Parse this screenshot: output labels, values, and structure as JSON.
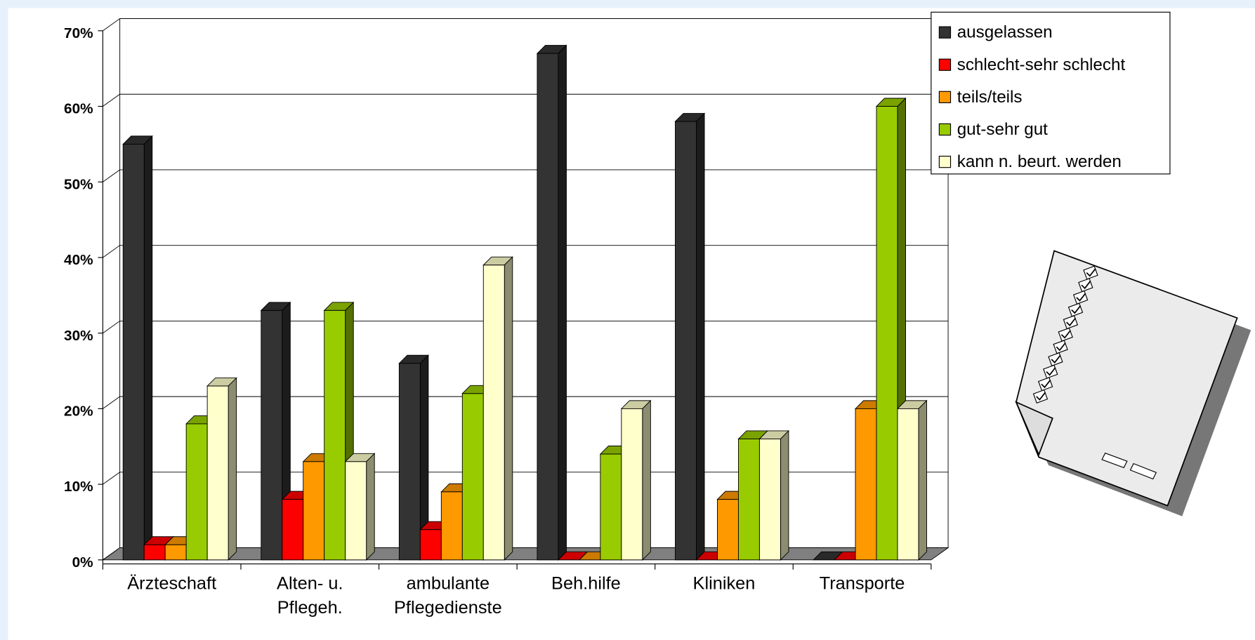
{
  "chart_data": {
    "type": "bar",
    "categories": [
      "Ärzteschaft",
      "Alten- u. Pflegeh.",
      "ambulante Pflegedienste",
      "Beh.hilfe",
      "Kliniken",
      "Transporte"
    ],
    "series": [
      {
        "name": "ausgelassen",
        "color": "#333333",
        "values": [
          55,
          33,
          26,
          67,
          58,
          0
        ]
      },
      {
        "name": "schlecht-sehr schlecht",
        "color": "#ff0000",
        "values": [
          2,
          8,
          4,
          0,
          0,
          0
        ]
      },
      {
        "name": "teils/teils",
        "color": "#ff9900",
        "values": [
          2,
          13,
          9,
          0,
          8,
          20
        ]
      },
      {
        "name": "gut-sehr gut",
        "color": "#99cc00",
        "values": [
          18,
          33,
          22,
          14,
          16,
          60
        ]
      },
      {
        "name": "kann n. beurt. werden",
        "color": "#ffffcc",
        "values": [
          23,
          13,
          39,
          20,
          16,
          20
        ]
      }
    ],
    "ylim": [
      0,
      70
    ],
    "yticks": [
      {
        "value": 0,
        "label": "0%"
      },
      {
        "value": 10,
        "label": "10%"
      },
      {
        "value": 20,
        "label": "20%"
      },
      {
        "value": 30,
        "label": "30%"
      },
      {
        "value": 40,
        "label": "40%"
      },
      {
        "value": 50,
        "label": "50%"
      },
      {
        "value": 60,
        "label": "60%"
      },
      {
        "value": 70,
        "label": "70%"
      }
    ],
    "grid": true,
    "legend": "top-right"
  }
}
